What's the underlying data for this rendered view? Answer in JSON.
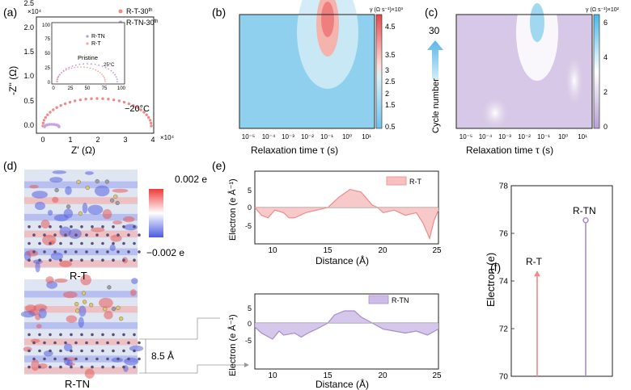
{
  "figure": {
    "panel_labels": [
      "(a)",
      "(b)",
      "(c)",
      "(d)",
      "(e)",
      "(f)"
    ]
  },
  "panel_a": {
    "exp_label": "×10⁴",
    "exp_label_x": "×10⁴",
    "ylabel": "-Z'' (Ω)",
    "xlabel": "Z' (Ω)",
    "yticks": [
      "0.0",
      "0.5",
      "1.0",
      "1.5",
      "2.0",
      "2.5"
    ],
    "xticks": [
      "0",
      "1",
      "2",
      "3",
      "4"
    ],
    "legend": [
      {
        "name": "R-T-30",
        "sup": "th",
        "color": "#f08a8a"
      },
      {
        "name": "R-TN-30",
        "sup": "th",
        "color": "#c9a2e6"
      }
    ],
    "temperature": "−20°C",
    "inset": {
      "legend": [
        {
          "name": "R-TN",
          "color": "#b79ad8"
        },
        {
          "name": "R-T",
          "color": "#f3a5a5"
        }
      ],
      "title": "Pristine",
      "temperature": "25°C",
      "yticks": [
        "0",
        "25",
        "50",
        "75",
        "100"
      ],
      "xticks": [
        "0",
        "25",
        "50",
        "75",
        "100"
      ]
    }
  },
  "panel_b": {
    "colorbar_title": "γ (Ω s⁻¹)×10³",
    "colorbar_ticks": [
      "4.5",
      "3.5",
      "3",
      "2.5",
      "2",
      "1.5",
      "0.5"
    ],
    "xlabel": "Relaxation time τ (s)",
    "xticks": [
      "10⁻⁵",
      "10⁻⁴",
      "10⁻³",
      "10⁻²",
      "10⁻¹",
      "10⁰",
      "10¹"
    ],
    "colors": {
      "bg": "#8fd0ef",
      "hot": "#f08a8a"
    }
  },
  "panel_c": {
    "colorbar_title": "γ (Ω s⁻¹)×10²",
    "colorbar_ticks": [
      "6",
      "4",
      "2",
      "0"
    ],
    "xlabel": "Relaxation time τ (s)",
    "xticks": [
      "10⁻⁵",
      "10⁻⁴",
      "10⁻³",
      "10⁻²",
      "10⁻¹",
      "10⁰",
      "10¹"
    ],
    "cycle_label": "Cycle number",
    "cycle_value": "30",
    "colors": {
      "bg": "#d6c8e6",
      "hot": "#a4dcf2"
    }
  },
  "panel_d": {
    "scale_top": "0.002 e",
    "scale_bottom": "−0.002 e",
    "label_top": "R-T",
    "label_bottom": "R-TN",
    "distance": "8.5 Å"
  },
  "panel_e": {
    "top": {
      "legend": "R-T",
      "color": "#f08a8a",
      "fill": "#f7c0c0"
    },
    "bottom": {
      "legend": "R-TN",
      "color": "#a98ccf",
      "fill": "#cdbde6"
    },
    "ylabel": "Electron (e Å⁻¹)",
    "xlabel": "Distance (Å)",
    "yticks": [
      "5",
      "0",
      "-5"
    ],
    "xticks": [
      "10",
      "15",
      "20",
      "25"
    ]
  },
  "panel_f": {
    "ylabel": "Electron  (e)",
    "yticks": [
      "78",
      "76",
      "74",
      "72",
      "70"
    ],
    "chart_data": {
      "type": "bar",
      "categories": [
        "R-T",
        "R-TN"
      ],
      "values": [
        74.4,
        76.55
      ],
      "ylim": [
        70,
        78
      ],
      "colors": [
        "#f08a8a",
        "#a98ccf"
      ]
    }
  }
}
